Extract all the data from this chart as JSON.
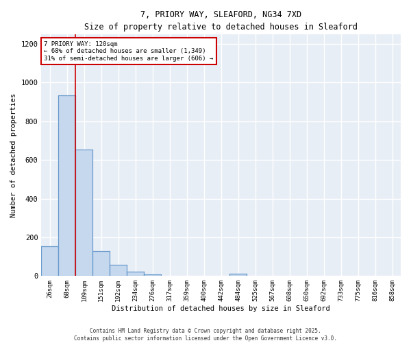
{
  "title1": "7, PRIORY WAY, SLEAFORD, NG34 7XD",
  "title2": "Size of property relative to detached houses in Sleaford",
  "xlabel": "Distribution of detached houses by size in Sleaford",
  "ylabel": "Number of detached properties",
  "categories": [
    "26sqm",
    "68sqm",
    "109sqm",
    "151sqm",
    "192sqm",
    "234sqm",
    "276sqm",
    "317sqm",
    "359sqm",
    "400sqm",
    "442sqm",
    "484sqm",
    "525sqm",
    "567sqm",
    "608sqm",
    "650sqm",
    "692sqm",
    "733sqm",
    "775sqm",
    "816sqm",
    "858sqm"
  ],
  "bar_values": [
    152,
    935,
    655,
    128,
    58,
    22,
    10,
    0,
    0,
    0,
    0,
    13,
    0,
    0,
    0,
    0,
    0,
    0,
    0,
    0,
    0
  ],
  "bar_color": "#c5d8ee",
  "bar_edge_color": "#6699cc",
  "bg_color": "#e8eef6",
  "grid_color": "#ffffff",
  "annotation_line1": "7 PRIORY WAY: 120sqm",
  "annotation_line2": "← 68% of detached houses are smaller (1,349)",
  "annotation_line3": "31% of semi-detached houses are larger (606) →",
  "red_line_x": 2.0,
  "ylim": [
    0,
    1250
  ],
  "yticks": [
    0,
    200,
    400,
    600,
    800,
    1000,
    1200
  ],
  "footer1": "Contains HM Land Registry data © Crown copyright and database right 2025.",
  "footer2": "Contains public sector information licensed under the Open Government Licence v3.0."
}
